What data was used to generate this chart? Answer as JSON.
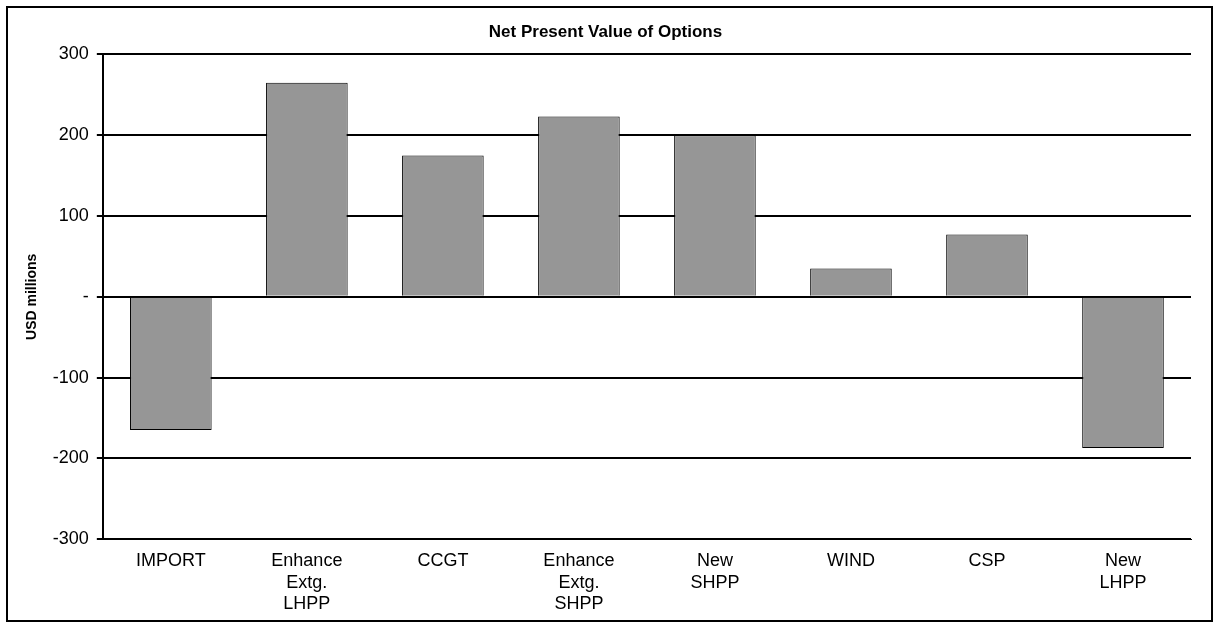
{
  "chart_data": {
    "type": "bar",
    "title": "Net Present Value of Options",
    "ylabel": "USD millions",
    "categories": [
      "IMPORT",
      "Enhance Extg. LHPP",
      "CCGT",
      "Enhance Extg. SHPP",
      "New SHPP",
      "WIND",
      "CSP",
      "New LHPP"
    ],
    "values": [
      -165,
      265,
      175,
      223,
      200,
      35,
      77,
      -187
    ],
    "color": "#969696",
    "ylim": [
      -300,
      300
    ],
    "yticks": [
      -300,
      -200,
      -100,
      {
        "value": 0,
        "label": "-"
      },
      100,
      200,
      300
    ],
    "grid": "y",
    "legend": false
  }
}
